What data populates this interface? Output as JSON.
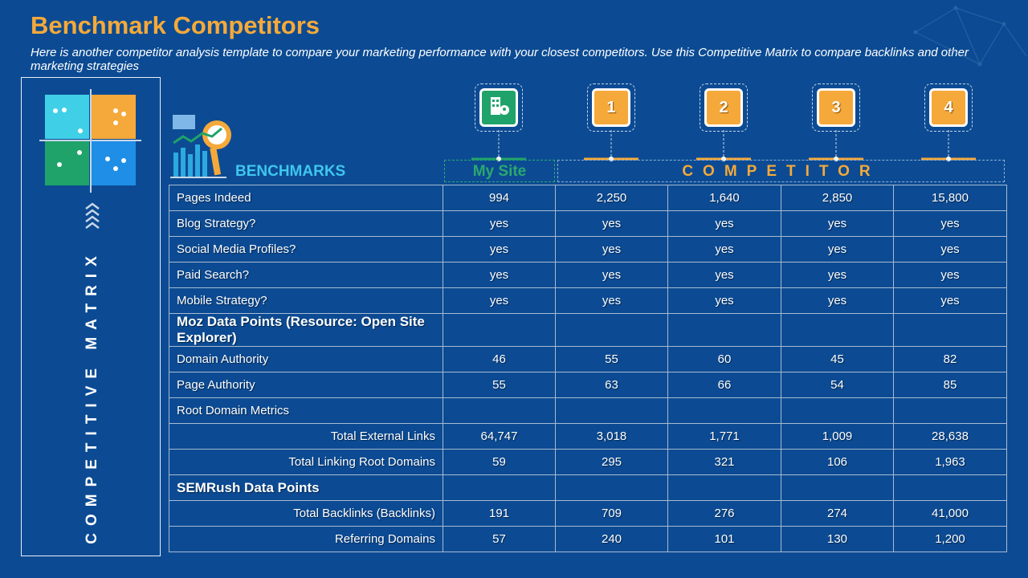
{
  "header": {
    "title": "Benchmark Competitors",
    "subtitle": "Here is another competitor analysis template to compare your marketing performance with  your closest competitors. Use this Competitive Matrix to compare backlinks and other marketing strategies"
  },
  "sidebar": {
    "label": "COMPETITIVE MATRIX"
  },
  "benchmarks_label": "BENCHMARKS",
  "column_headers": {
    "my_site": "My Site",
    "competitor": "COMPETITOR",
    "badges": [
      "1",
      "2",
      "3",
      "4"
    ]
  },
  "table": {
    "rows": [
      [
        "Pages Indeed",
        "994",
        "2,250",
        "1,640",
        "2,850",
        "15,800"
      ],
      [
        "Blog Strategy?",
        "yes",
        "yes",
        "yes",
        "yes",
        "yes"
      ],
      [
        "Social Media Profiles?",
        "yes",
        "yes",
        "yes",
        "yes",
        "yes"
      ],
      [
        "Paid Search?",
        "yes",
        "yes",
        "yes",
        "yes",
        "yes"
      ],
      [
        "Mobile Strategy?",
        "yes",
        "yes",
        "yes",
        "yes",
        "yes"
      ],
      [
        "Moz Data Points (Resource: Open Site Explorer)"
      ],
      [
        "Domain Authority",
        "46",
        "55",
        "60",
        "45",
        "82"
      ],
      [
        "Page Authority",
        "55",
        "63",
        "66",
        "54",
        "85"
      ],
      [
        "Root Domain Metrics"
      ],
      [
        "Total External Links",
        "64,747",
        "3,018",
        "1,771",
        "1,009",
        "28,638"
      ],
      [
        "Total Linking Root Domains",
        "59",
        "295",
        "321",
        "106",
        "1,963"
      ],
      [
        "SEMRush Data Points"
      ],
      [
        "Total Backlinks (Backlinks)",
        "191",
        "709",
        "276",
        "274",
        "41,000"
      ],
      [
        "Referring Domains",
        "57",
        "240",
        "101",
        "130",
        "1,200"
      ]
    ]
  }
}
